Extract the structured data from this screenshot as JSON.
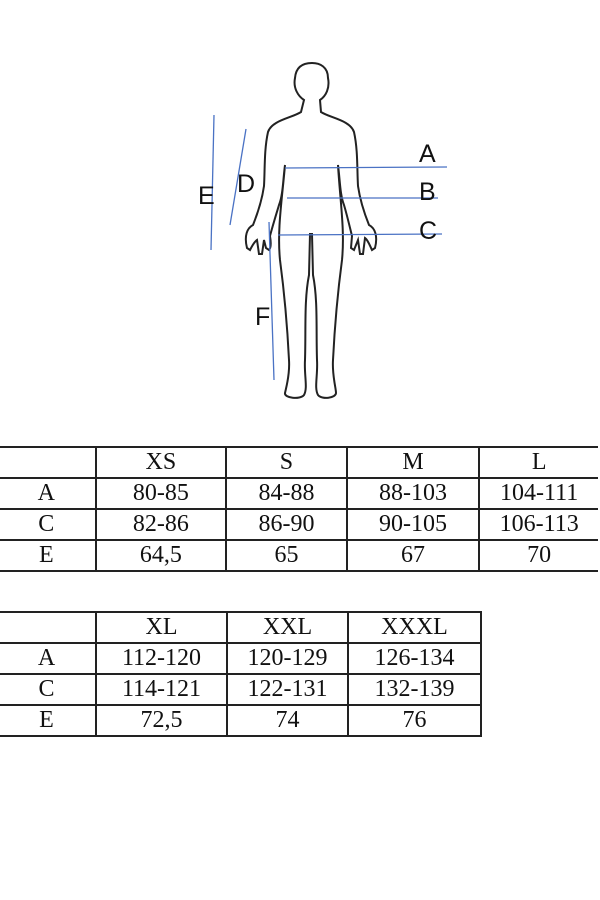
{
  "figure": {
    "labels": {
      "A": "A",
      "B": "B",
      "C": "C",
      "D": "D",
      "E": "E",
      "F": "F"
    },
    "line_color": "#4a72c4"
  },
  "table1": {
    "headers": [
      "",
      "XS",
      "S",
      "M",
      "L"
    ],
    "rows": [
      {
        "label": "A",
        "values": [
          "80-85",
          "84-88",
          "88-103",
          "104-111"
        ]
      },
      {
        "label": "C",
        "values": [
          "82-86",
          "86-90",
          "90-105",
          "106-113"
        ]
      },
      {
        "label": "E",
        "values": [
          "64,5",
          "65",
          "67",
          "70"
        ]
      }
    ]
  },
  "table2": {
    "headers": [
      "",
      "XL",
      "XXL",
      "XXXL"
    ],
    "rows": [
      {
        "label": "A",
        "values": [
          "112-120",
          "120-129",
          "126-134"
        ]
      },
      {
        "label": "C",
        "values": [
          "114-121",
          "122-131",
          "132-139"
        ]
      },
      {
        "label": "E",
        "values": [
          "72,5",
          "74",
          "76"
        ]
      }
    ]
  }
}
